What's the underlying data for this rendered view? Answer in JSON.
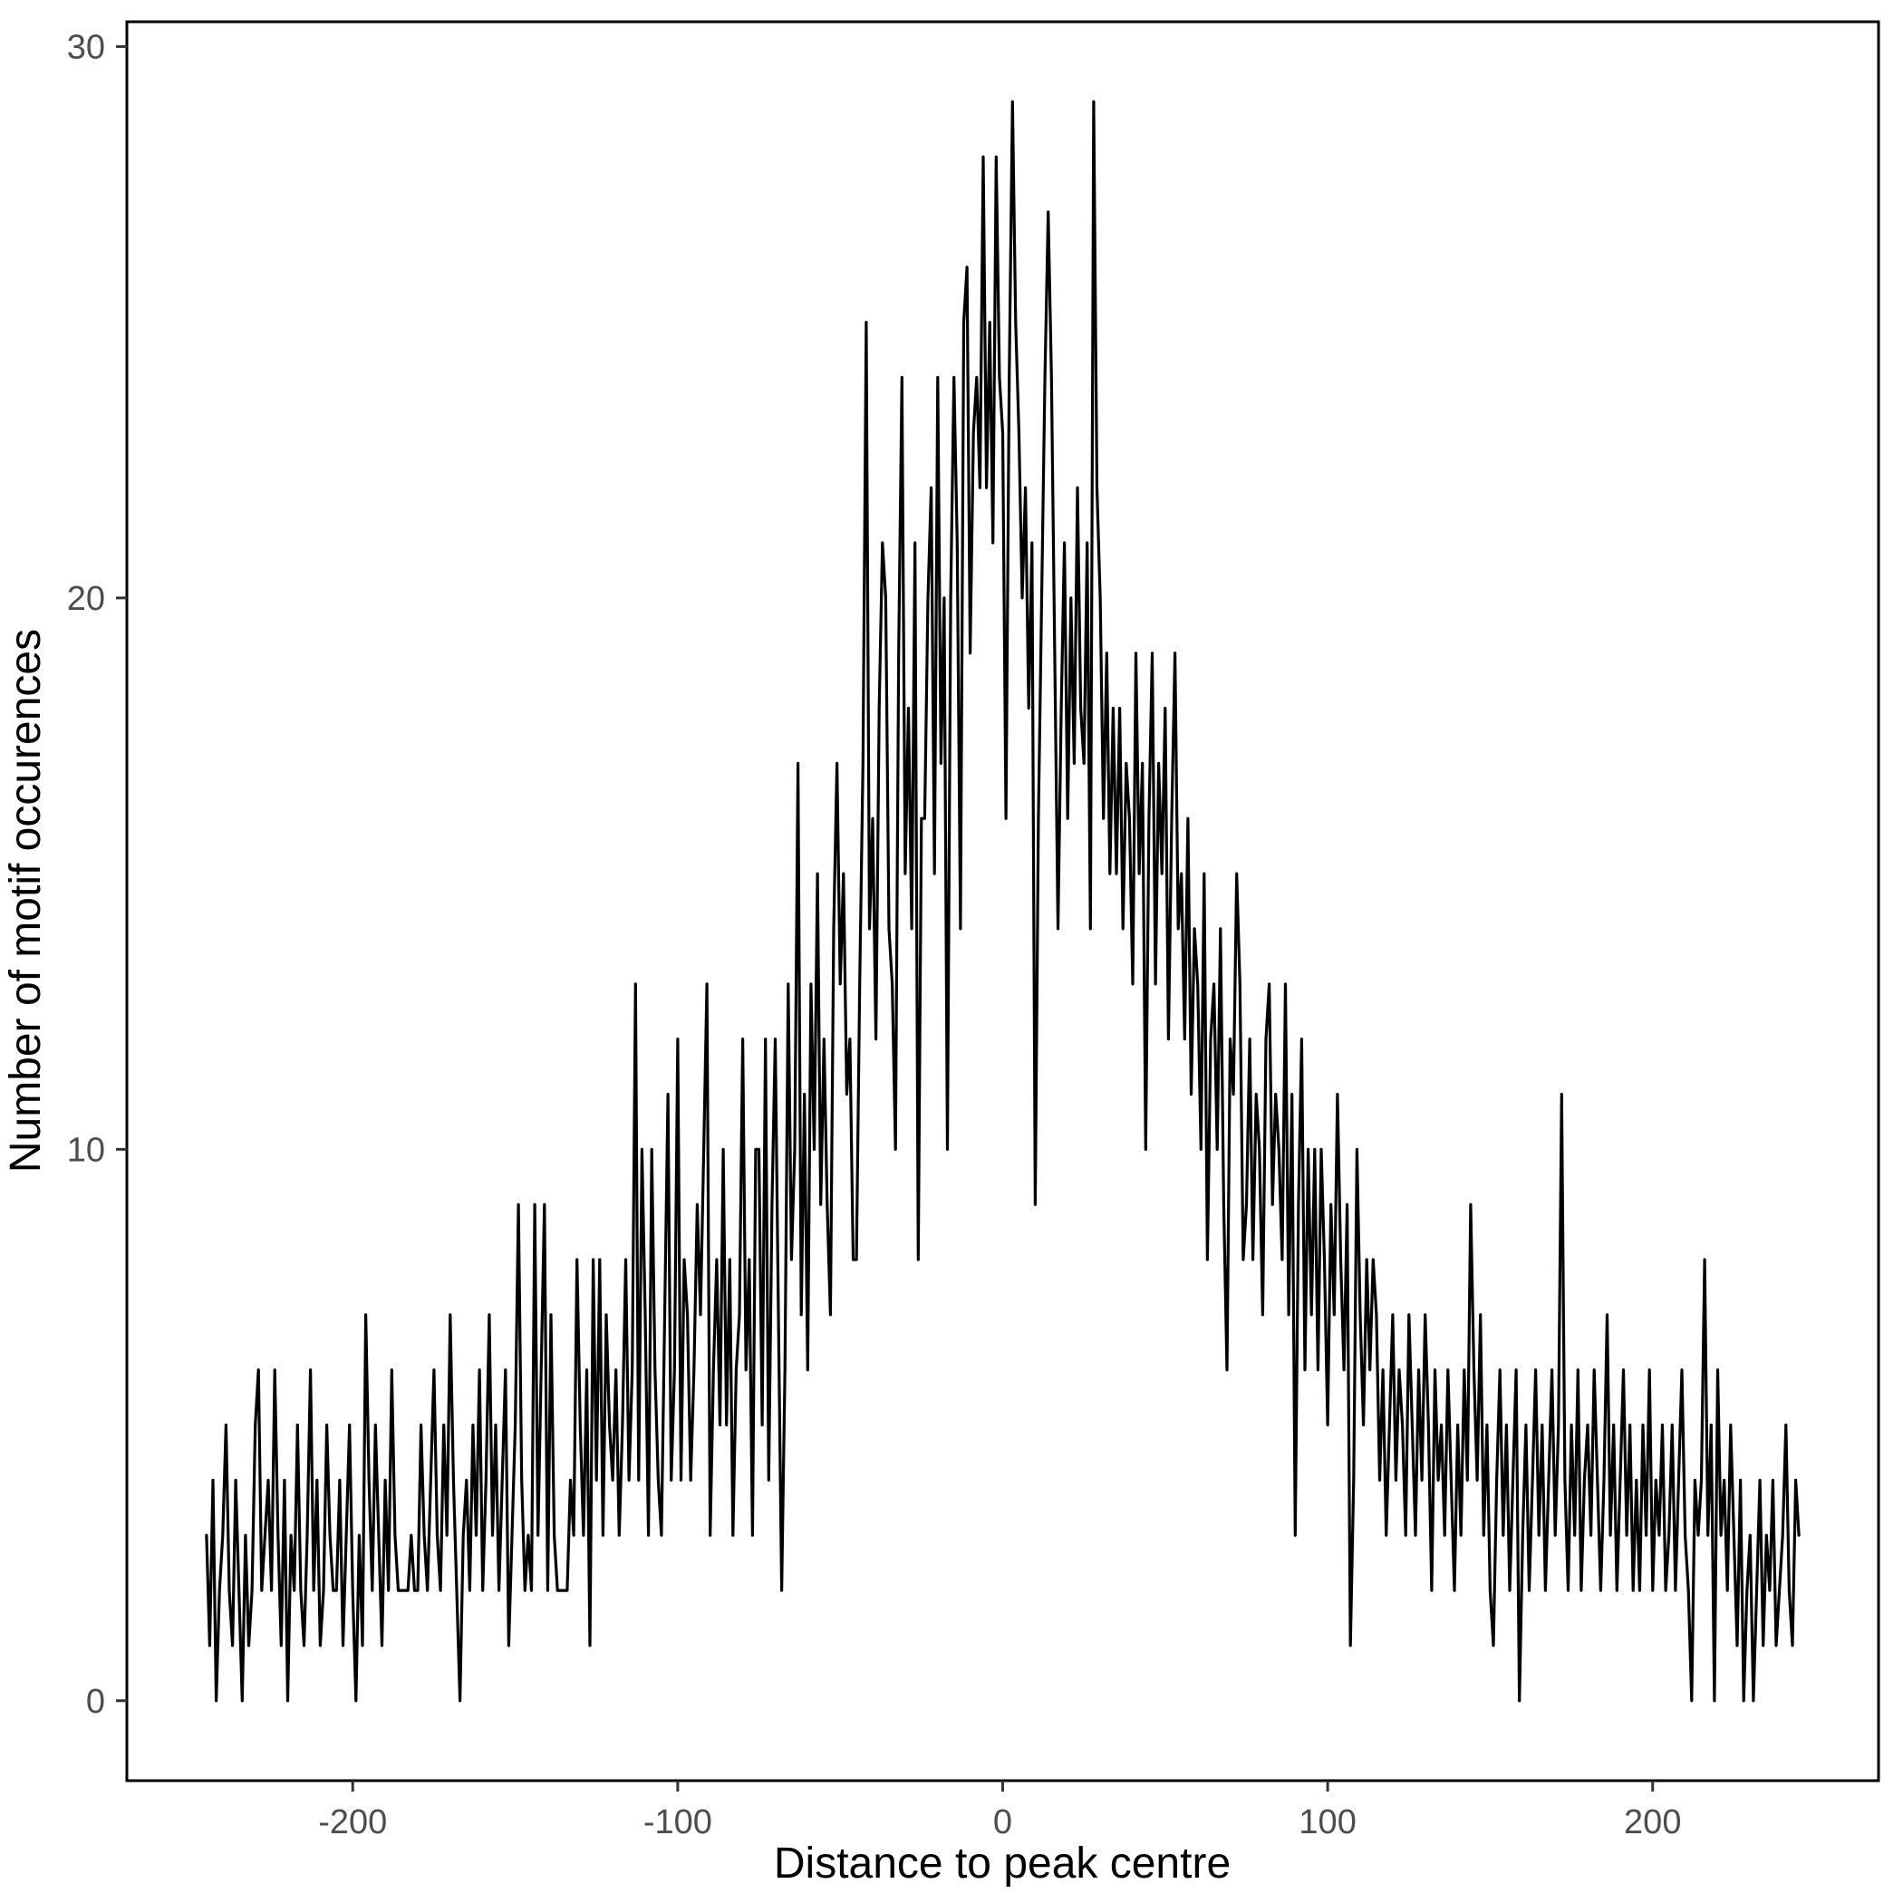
{
  "figure": {
    "background_color": "#ffffff",
    "panel_border_color": "#000000",
    "tick_mark_color": "#333333",
    "tick_label_color": "#4d4d4d",
    "line_color": "#000000"
  },
  "chart_data": {
    "type": "line",
    "title": "",
    "xlabel": "Distance to peak centre",
    "ylabel": "Number of motif occurences",
    "legend": false,
    "grid": false,
    "xlim": [
      -269.5,
      269.5
    ],
    "ylim": [
      -1.45,
      30.45
    ],
    "x_ticks": [
      -200,
      -100,
      0,
      100,
      200
    ],
    "x_tick_labels": [
      "-200",
      "-100",
      "0",
      "100",
      "200"
    ],
    "y_ticks": [
      0,
      10,
      20,
      30
    ],
    "y_tick_labels": [
      "0",
      "10",
      "20",
      "30"
    ],
    "x_start": -245,
    "x_step": 1,
    "series": [
      {
        "name": "Number of motif occurences",
        "values": [
          3,
          1,
          4,
          0,
          2,
          3,
          5,
          2,
          1,
          4,
          2,
          0,
          3,
          1,
          2,
          5,
          6,
          2,
          3,
          4,
          2,
          6,
          3,
          1,
          4,
          0,
          3,
          2,
          5,
          2,
          1,
          3,
          6,
          2,
          4,
          1,
          2,
          5,
          3,
          2,
          2,
          4,
          1,
          3,
          5,
          2,
          0,
          3,
          1,
          7,
          4,
          2,
          5,
          3,
          1,
          4,
          2,
          6,
          3,
          2,
          2,
          2,
          2,
          3,
          2,
          2,
          5,
          3,
          2,
          4,
          6,
          3,
          2,
          5,
          3,
          7,
          4,
          2,
          0,
          3,
          4,
          2,
          5,
          3,
          6,
          2,
          4,
          7,
          3,
          5,
          2,
          4,
          6,
          1,
          3,
          5,
          9,
          4,
          2,
          3,
          2,
          9,
          3,
          6,
          9,
          2,
          7,
          3,
          2,
          2,
          2,
          2,
          4,
          3,
          8,
          5,
          3,
          6,
          1,
          8,
          4,
          8,
          3,
          7,
          5,
          4,
          6,
          3,
          5,
          8,
          4,
          6,
          13,
          4,
          10,
          7,
          3,
          10,
          6,
          4,
          3,
          7,
          11,
          4,
          6,
          12,
          4,
          8,
          7,
          4,
          6,
          9,
          7,
          10,
          13,
          3,
          6,
          8,
          5,
          10,
          5,
          8,
          3,
          6,
          7,
          12,
          6,
          8,
          3,
          10,
          10,
          5,
          12,
          4,
          9,
          12,
          7,
          2,
          6,
          13,
          8,
          10,
          17,
          7,
          11,
          6,
          13,
          10,
          15,
          9,
          12,
          9,
          7,
          14,
          17,
          13,
          15,
          11,
          12,
          8,
          8,
          13,
          17,
          25,
          14,
          16,
          12,
          18,
          21,
          20,
          14,
          13,
          10,
          19,
          24,
          15,
          18,
          14,
          21,
          8,
          16,
          16,
          20,
          22,
          15,
          24,
          17,
          20,
          10,
          20,
          24,
          21,
          14,
          25,
          26,
          19,
          23,
          24,
          22,
          28,
          22,
          25,
          21,
          28,
          24,
          23,
          16,
          24,
          29,
          25,
          23,
          20,
          22,
          18,
          21,
          9,
          16,
          20,
          24,
          27,
          24,
          19,
          14,
          18,
          21,
          16,
          20,
          17,
          22,
          18,
          17,
          21,
          14,
          29,
          22,
          20,
          16,
          19,
          15,
          18,
          15,
          18,
          14,
          17,
          16,
          13,
          19,
          15,
          17,
          10,
          16,
          19,
          13,
          17,
          15,
          18,
          12,
          16,
          19,
          14,
          15,
          12,
          16,
          11,
          14,
          13,
          10,
          15,
          8,
          12,
          13,
          10,
          14,
          9,
          6,
          12,
          11,
          15,
          13,
          8,
          9,
          12,
          8,
          11,
          10,
          7,
          12,
          13,
          9,
          11,
          10,
          8,
          13,
          7,
          11,
          3,
          9,
          12,
          6,
          10,
          7,
          10,
          6,
          10,
          8,
          5,
          9,
          7,
          11,
          8,
          6,
          9,
          1,
          4,
          10,
          7,
          5,
          8,
          6,
          8,
          7,
          4,
          6,
          3,
          5,
          7,
          4,
          6,
          5,
          3,
          7,
          5,
          3,
          6,
          4,
          7,
          5,
          2,
          6,
          4,
          5,
          3,
          6,
          4,
          2,
          5,
          3,
          6,
          4,
          9,
          6,
          4,
          7,
          3,
          5,
          2,
          1,
          4,
          6,
          3,
          5,
          2,
          4,
          6,
          0,
          3,
          5,
          2,
          4,
          6,
          3,
          5,
          2,
          4,
          6,
          3,
          5,
          11,
          4,
          2,
          5,
          3,
          6,
          2,
          4,
          5,
          3,
          6,
          4,
          2,
          4,
          7,
          3,
          5,
          2,
          4,
          6,
          3,
          5,
          2,
          4,
          2,
          5,
          3,
          6,
          2,
          4,
          3,
          5,
          2,
          3,
          5,
          2,
          4,
          6,
          3,
          2,
          0,
          4,
          3,
          4,
          8,
          3,
          5,
          0,
          6,
          3,
          4,
          2,
          5,
          3,
          1,
          4,
          0,
          2,
          3,
          0,
          2,
          4,
          1,
          3,
          2,
          4,
          1,
          2,
          3,
          5,
          2,
          1,
          4,
          3
        ]
      }
    ]
  }
}
